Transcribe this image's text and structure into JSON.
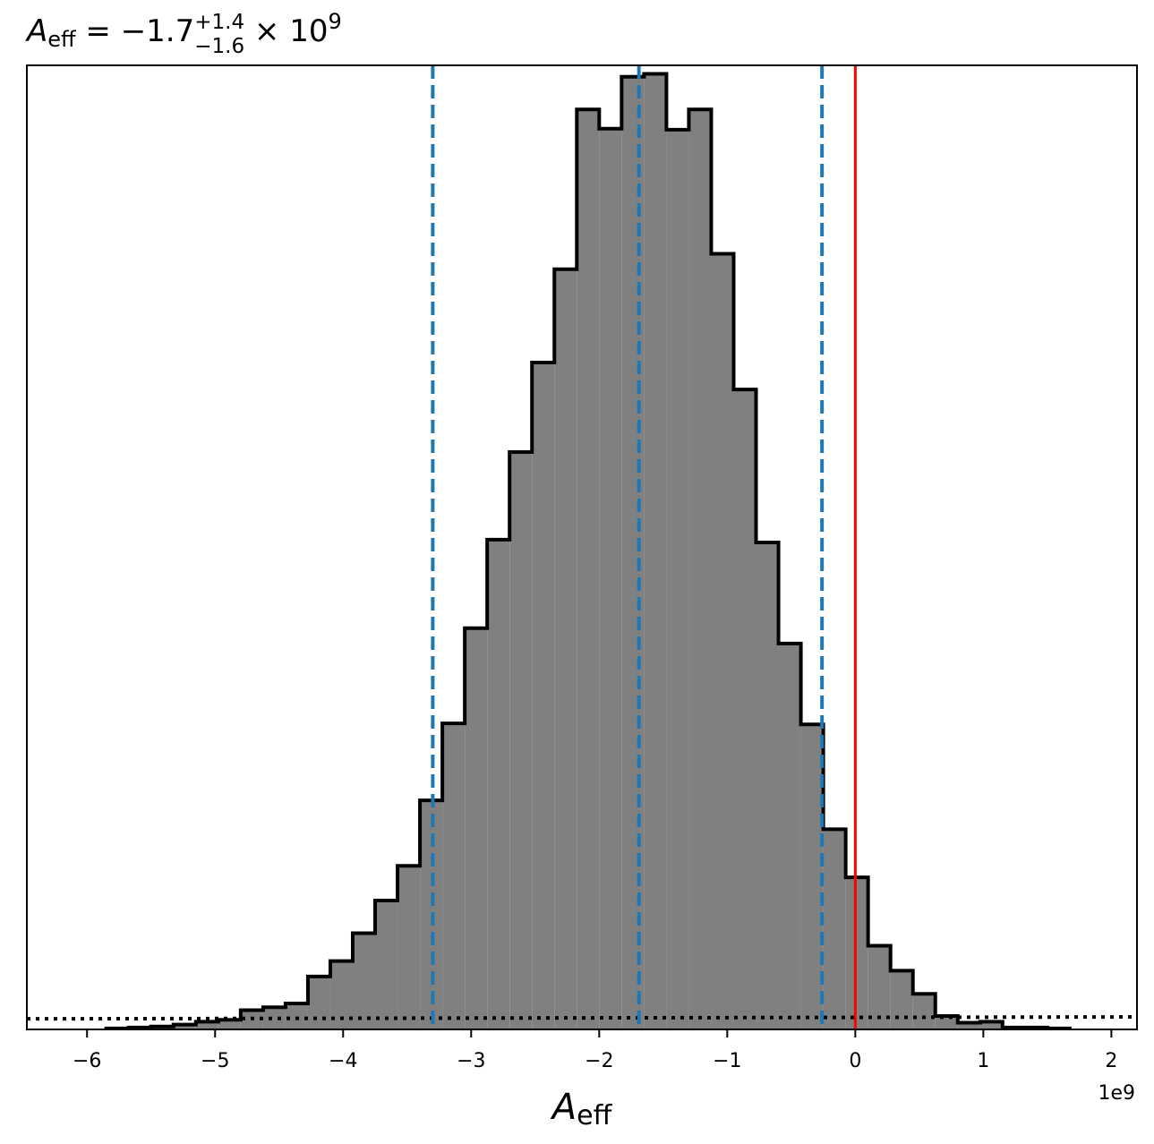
{
  "chart_data": {
    "type": "histogram",
    "title": {
      "symbol": "A",
      "subscript": "eff",
      "equals": " = ",
      "median": "−1.7",
      "upper": "+1.4",
      "lower": "−1.6",
      "multiplier": " × 10",
      "exponent": "9"
    },
    "xlabel": {
      "symbol": "A",
      "subscript": "eff"
    },
    "x_offset_label": "1e9",
    "xlim": [
      -6.47,
      2.2
    ],
    "ylim": [
      0,
      1.0
    ],
    "xticks": [
      {
        "value": -6,
        "label": "−6"
      },
      {
        "value": -5,
        "label": "−5"
      },
      {
        "value": -4,
        "label": "−4"
      },
      {
        "value": -3,
        "label": "−3"
      },
      {
        "value": -2,
        "label": "−2"
      },
      {
        "value": -1,
        "label": "−1"
      },
      {
        "value": 0,
        "label": "0"
      },
      {
        "value": 1,
        "label": "1"
      },
      {
        "value": 2,
        "label": "2"
      }
    ],
    "bin_edges": [
      -5.85,
      -5.675,
      -5.5,
      -5.325,
      -5.15,
      -4.975,
      -4.8,
      -4.625,
      -4.45,
      -4.275,
      -4.1,
      -3.925,
      -3.75,
      -3.575,
      -3.4,
      -3.225,
      -3.05,
      -2.875,
      -2.7,
      -2.525,
      -2.35,
      -2.175,
      -2.0,
      -1.825,
      -1.65,
      -1.475,
      -1.3,
      -1.125,
      -0.95,
      -0.775,
      -0.6,
      -0.425,
      -0.25,
      -0.075,
      0.1,
      0.275,
      0.45,
      0.625,
      0.8,
      0.975,
      1.15,
      1.325,
      1.5,
      1.675
    ],
    "counts": [
      0.001,
      0.002,
      0.003,
      0.005,
      0.008,
      0.01,
      0.02,
      0.023,
      0.027,
      0.055,
      0.071,
      0.1,
      0.134,
      0.17,
      0.238,
      0.318,
      0.417,
      0.509,
      0.6,
      0.693,
      0.79,
      0.956,
      0.936,
      0.99,
      0.993,
      0.935,
      0.956,
      0.806,
      0.665,
      0.506,
      0.401,
      0.317,
      0.208,
      0.158,
      0.087,
      0.061,
      0.037,
      0.014,
      0.007,
      0.008,
      0.002,
      0.002,
      0.001
    ],
    "hist_style": {
      "fill": "#808080",
      "edge": "#000000"
    },
    "quantile_lines": {
      "values": [
        -3.3,
        -1.69,
        -0.26
      ],
      "color": "#1f77b4",
      "style": "dashed"
    },
    "reference_line": {
      "value": 0,
      "color": "#ff0000",
      "style": "solid"
    },
    "prior_line": {
      "y_start": 0.011,
      "y_end": 0.013,
      "color": "#000000",
      "style": "dotted"
    }
  }
}
